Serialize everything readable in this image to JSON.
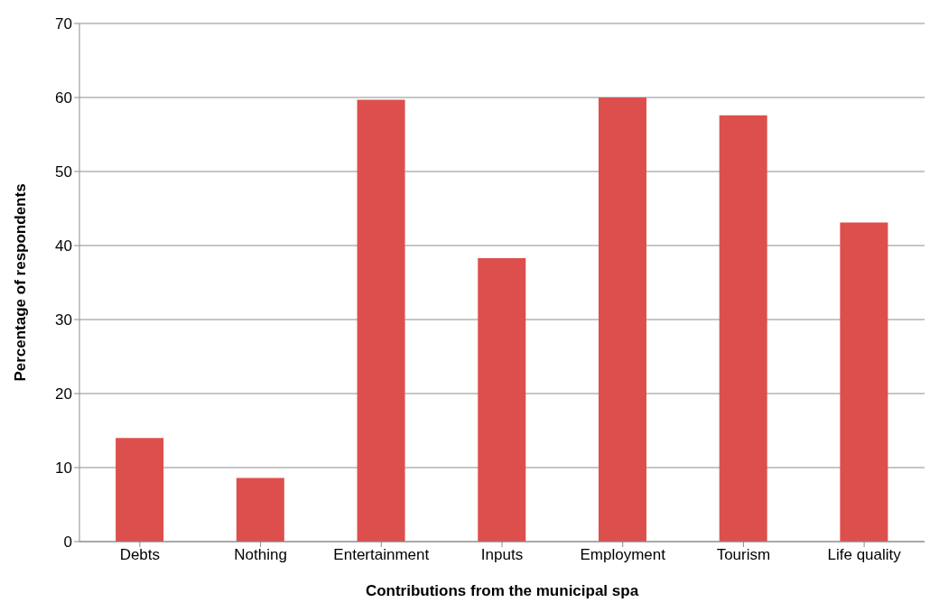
{
  "chart_data": {
    "type": "bar",
    "xlabel": "Contributions from the municipal  spa",
    "ylabel": "Percentage of respondents",
    "categories": [
      "Debts",
      "Nothing",
      "Entertainment",
      "Inputs",
      "Employment",
      "Tourism",
      "Life quality"
    ],
    "values": [
      14,
      8.6,
      59.7,
      38.3,
      60,
      57.6,
      43.1
    ],
    "color": "#dd4f4c",
    "ylim": [
      0,
      70
    ],
    "yticks": [
      0,
      10,
      20,
      30,
      40,
      50,
      60,
      70
    ],
    "grid": "y"
  }
}
